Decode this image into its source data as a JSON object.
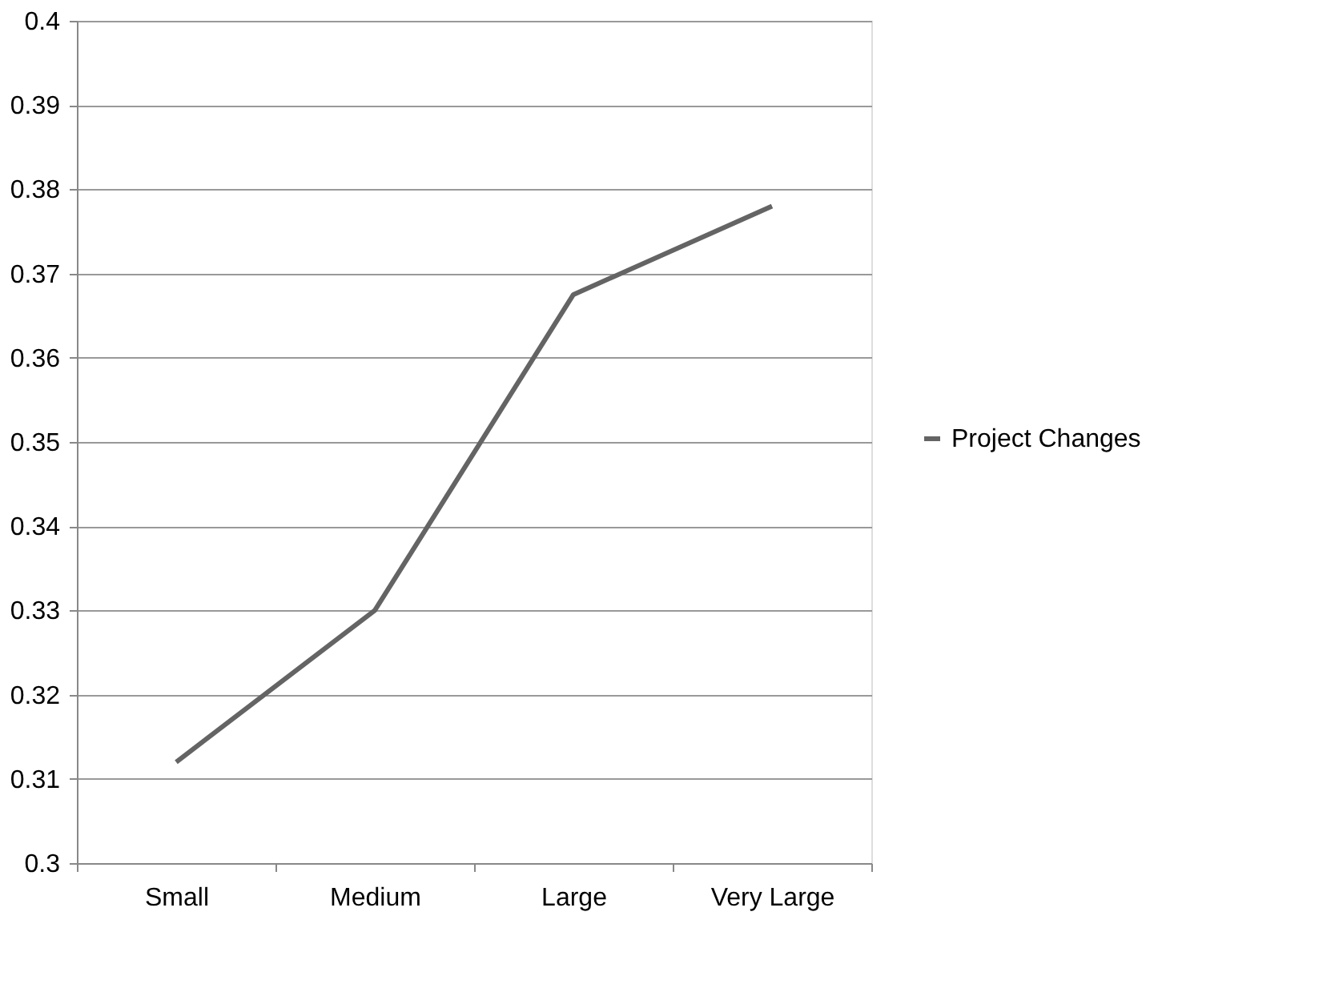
{
  "chart_data": {
    "type": "line",
    "categories": [
      "Small",
      "Medium",
      "Large",
      "Very Large"
    ],
    "series": [
      {
        "name": "Project Changes",
        "color": "#646464",
        "values": [
          0.312,
          0.33,
          0.3675,
          0.378
        ]
      }
    ],
    "ylim": [
      0.3,
      0.4
    ],
    "yticks": [
      {
        "value": 0.3,
        "label": "0.3"
      },
      0.31,
      0.32,
      0.33,
      0.34,
      0.35,
      0.36,
      0.37,
      0.38,
      0.39,
      {
        "value": 0.4,
        "label": "0.4"
      }
    ],
    "grid": "y",
    "legend": "right",
    "marker": "none",
    "line_style": "solid"
  }
}
